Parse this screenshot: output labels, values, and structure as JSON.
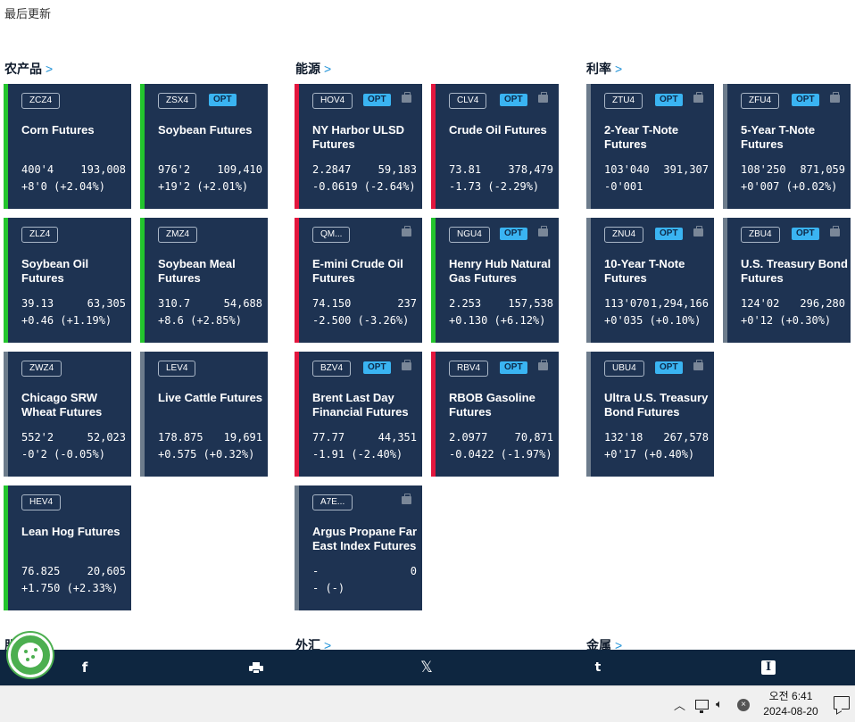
{
  "page": {
    "last_updated": "最后更新"
  },
  "sections": {
    "agri": "农产品",
    "energy": "能源",
    "rates": "利率",
    "equity": "股",
    "fx": "外汇",
    "metals": "金属"
  },
  "cards": {
    "zc": {
      "code": "ZCZ4",
      "name": "Corn Futures",
      "price": "400'4",
      "volume": "193,008",
      "change": "+8'0 (+2.04%)"
    },
    "zs": {
      "code": "ZSX4",
      "opt": "OPT",
      "name": "Soybean Futures",
      "price": "976'2",
      "volume": "109,410",
      "change": "+19'2 (+2.01%)"
    },
    "zl": {
      "code": "ZLZ4",
      "name": "Soybean Oil Futures",
      "price": "39.13",
      "volume": "63,305",
      "change": "+0.46 (+1.19%)"
    },
    "zm": {
      "code": "ZMZ4",
      "name": "Soybean Meal Futures",
      "price": "310.7",
      "volume": "54,688",
      "change": "+8.6 (+2.85%)"
    },
    "zw": {
      "code": "ZWZ4",
      "name": "Chicago SRW Wheat Futures",
      "price": "552'2",
      "volume": "52,023",
      "change": "-0'2 (-0.05%)"
    },
    "le": {
      "code": "LEV4",
      "name": "Live Cattle Futures",
      "price": "178.875",
      "volume": "19,691",
      "change": "+0.575 (+0.32%)"
    },
    "he": {
      "code": "HEV4",
      "name": "Lean Hog Futures",
      "price": "76.825",
      "volume": "20,605",
      "change": "+1.750 (+2.33%)"
    },
    "ho": {
      "code": "HOV4",
      "opt": "OPT",
      "name": "NY Harbor ULSD Futures",
      "price": "2.2847",
      "volume": "59,183",
      "change": "-0.0619 (-2.64%)"
    },
    "cl": {
      "code": "CLV4",
      "opt": "OPT",
      "name": "Crude Oil Futures",
      "price": "73.81",
      "volume": "378,479",
      "change": "-1.73 (-2.29%)"
    },
    "qm": {
      "code": "QM...",
      "name": "E-mini Crude Oil Futures",
      "price": "74.150",
      "volume": "237",
      "change": "-2.500 (-3.26%)"
    },
    "ng": {
      "code": "NGU4",
      "opt": "OPT",
      "name": "Henry Hub Natural Gas Futures",
      "price": "2.253",
      "volume": "157,538",
      "change": "+0.130 (+6.12%)"
    },
    "bz": {
      "code": "BZV4",
      "opt": "OPT",
      "name": "Brent Last Day Financial Futures",
      "price": "77.77",
      "volume": "44,351",
      "change": "-1.91 (-2.40%)"
    },
    "rb": {
      "code": "RBV4",
      "opt": "OPT",
      "name": "RBOB Gasoline Futures",
      "price": "2.0977",
      "volume": "70,871",
      "change": "-0.0422 (-1.97%)"
    },
    "a7": {
      "code": "A7E...",
      "name": "Argus Propane Far East Index Futures",
      "price": "-",
      "volume": "0",
      "change": "- (-)"
    },
    "zt": {
      "code": "ZTU4",
      "opt": "OPT",
      "name": "2-Year T-Note Futures",
      "price": "103'040",
      "volume": "391,307",
      "change": "-0'001"
    },
    "zf": {
      "code": "ZFU4",
      "opt": "OPT",
      "name": "5-Year T-Note Futures",
      "price": "108'250",
      "volume": "871,059",
      "change": "+0'007 (+0.02%)"
    },
    "zn": {
      "code": "ZNU4",
      "opt": "OPT",
      "name": "10-Year T-Note Futures",
      "price": "113'070",
      "volume": "1,294,166",
      "change": "+0'035 (+0.10%)"
    },
    "zb": {
      "code": "ZBU4",
      "opt": "OPT",
      "name": "U.S. Treasury Bond Futures",
      "price": "124'02",
      "volume": "296,280",
      "change": "+0'12 (+0.30%)"
    },
    "ub": {
      "code": "UBU4",
      "opt": "OPT",
      "name": "Ultra U.S. Treasury Bond Futures",
      "price": "132'18",
      "volume": "267,578",
      "change": "+0'17 (+0.40%)"
    }
  },
  "share": {
    "facebook": "f",
    "x": "𝕏",
    "tumblr": "t",
    "instapaper": "I"
  },
  "taskbar": {
    "time": "오전 6:41",
    "date": "2024-08-20",
    "err": "×"
  },
  "colors": {
    "card_bg": "#1e3352",
    "up": "#23c52d",
    "down": "#e3173e",
    "flat": "#6d7c8c",
    "opt_badge": "#3ab4f2"
  }
}
